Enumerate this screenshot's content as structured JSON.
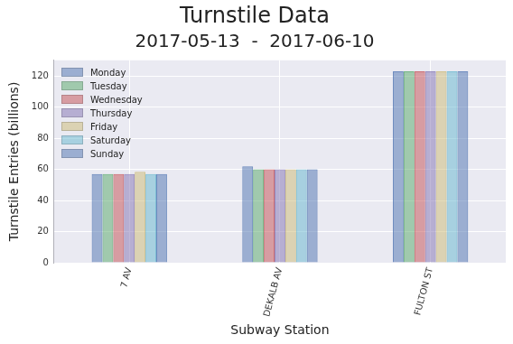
{
  "chart_data": {
    "type": "bar",
    "title": "Turnstile Data",
    "subtitle": "2017-05-13  -  2017-06-10",
    "x_label": "Subway Station",
    "y_label": "Turnstile Entries (billions)",
    "categories": [
      "7 AV",
      "DEKALB AV",
      "FULTON ST"
    ],
    "series": [
      {
        "name": "Monday",
        "color": "#4C72B0",
        "values": [
          57,
          62,
          123
        ]
      },
      {
        "name": "Tuesday",
        "color": "#55A868",
        "values": [
          57,
          60,
          123
        ]
      },
      {
        "name": "Wednesday",
        "color": "#C44E52",
        "values": [
          57,
          60,
          123
        ]
      },
      {
        "name": "Thursday",
        "color": "#8172B2",
        "values": [
          57,
          60,
          123
        ]
      },
      {
        "name": "Friday",
        "color": "#CCB974",
        "values": [
          58.5,
          60,
          123
        ]
      },
      {
        "name": "Saturday",
        "color": "#64B5CD",
        "values": [
          57,
          60,
          123
        ]
      },
      {
        "name": "Sunday",
        "color": "#4C72B0",
        "values": [
          57,
          60,
          123
        ]
      }
    ],
    "ylim": [
      0,
      130
    ],
    "yticks": [
      0,
      20,
      40,
      60,
      80,
      100,
      120
    ],
    "grid": true,
    "legend": "upper left"
  }
}
